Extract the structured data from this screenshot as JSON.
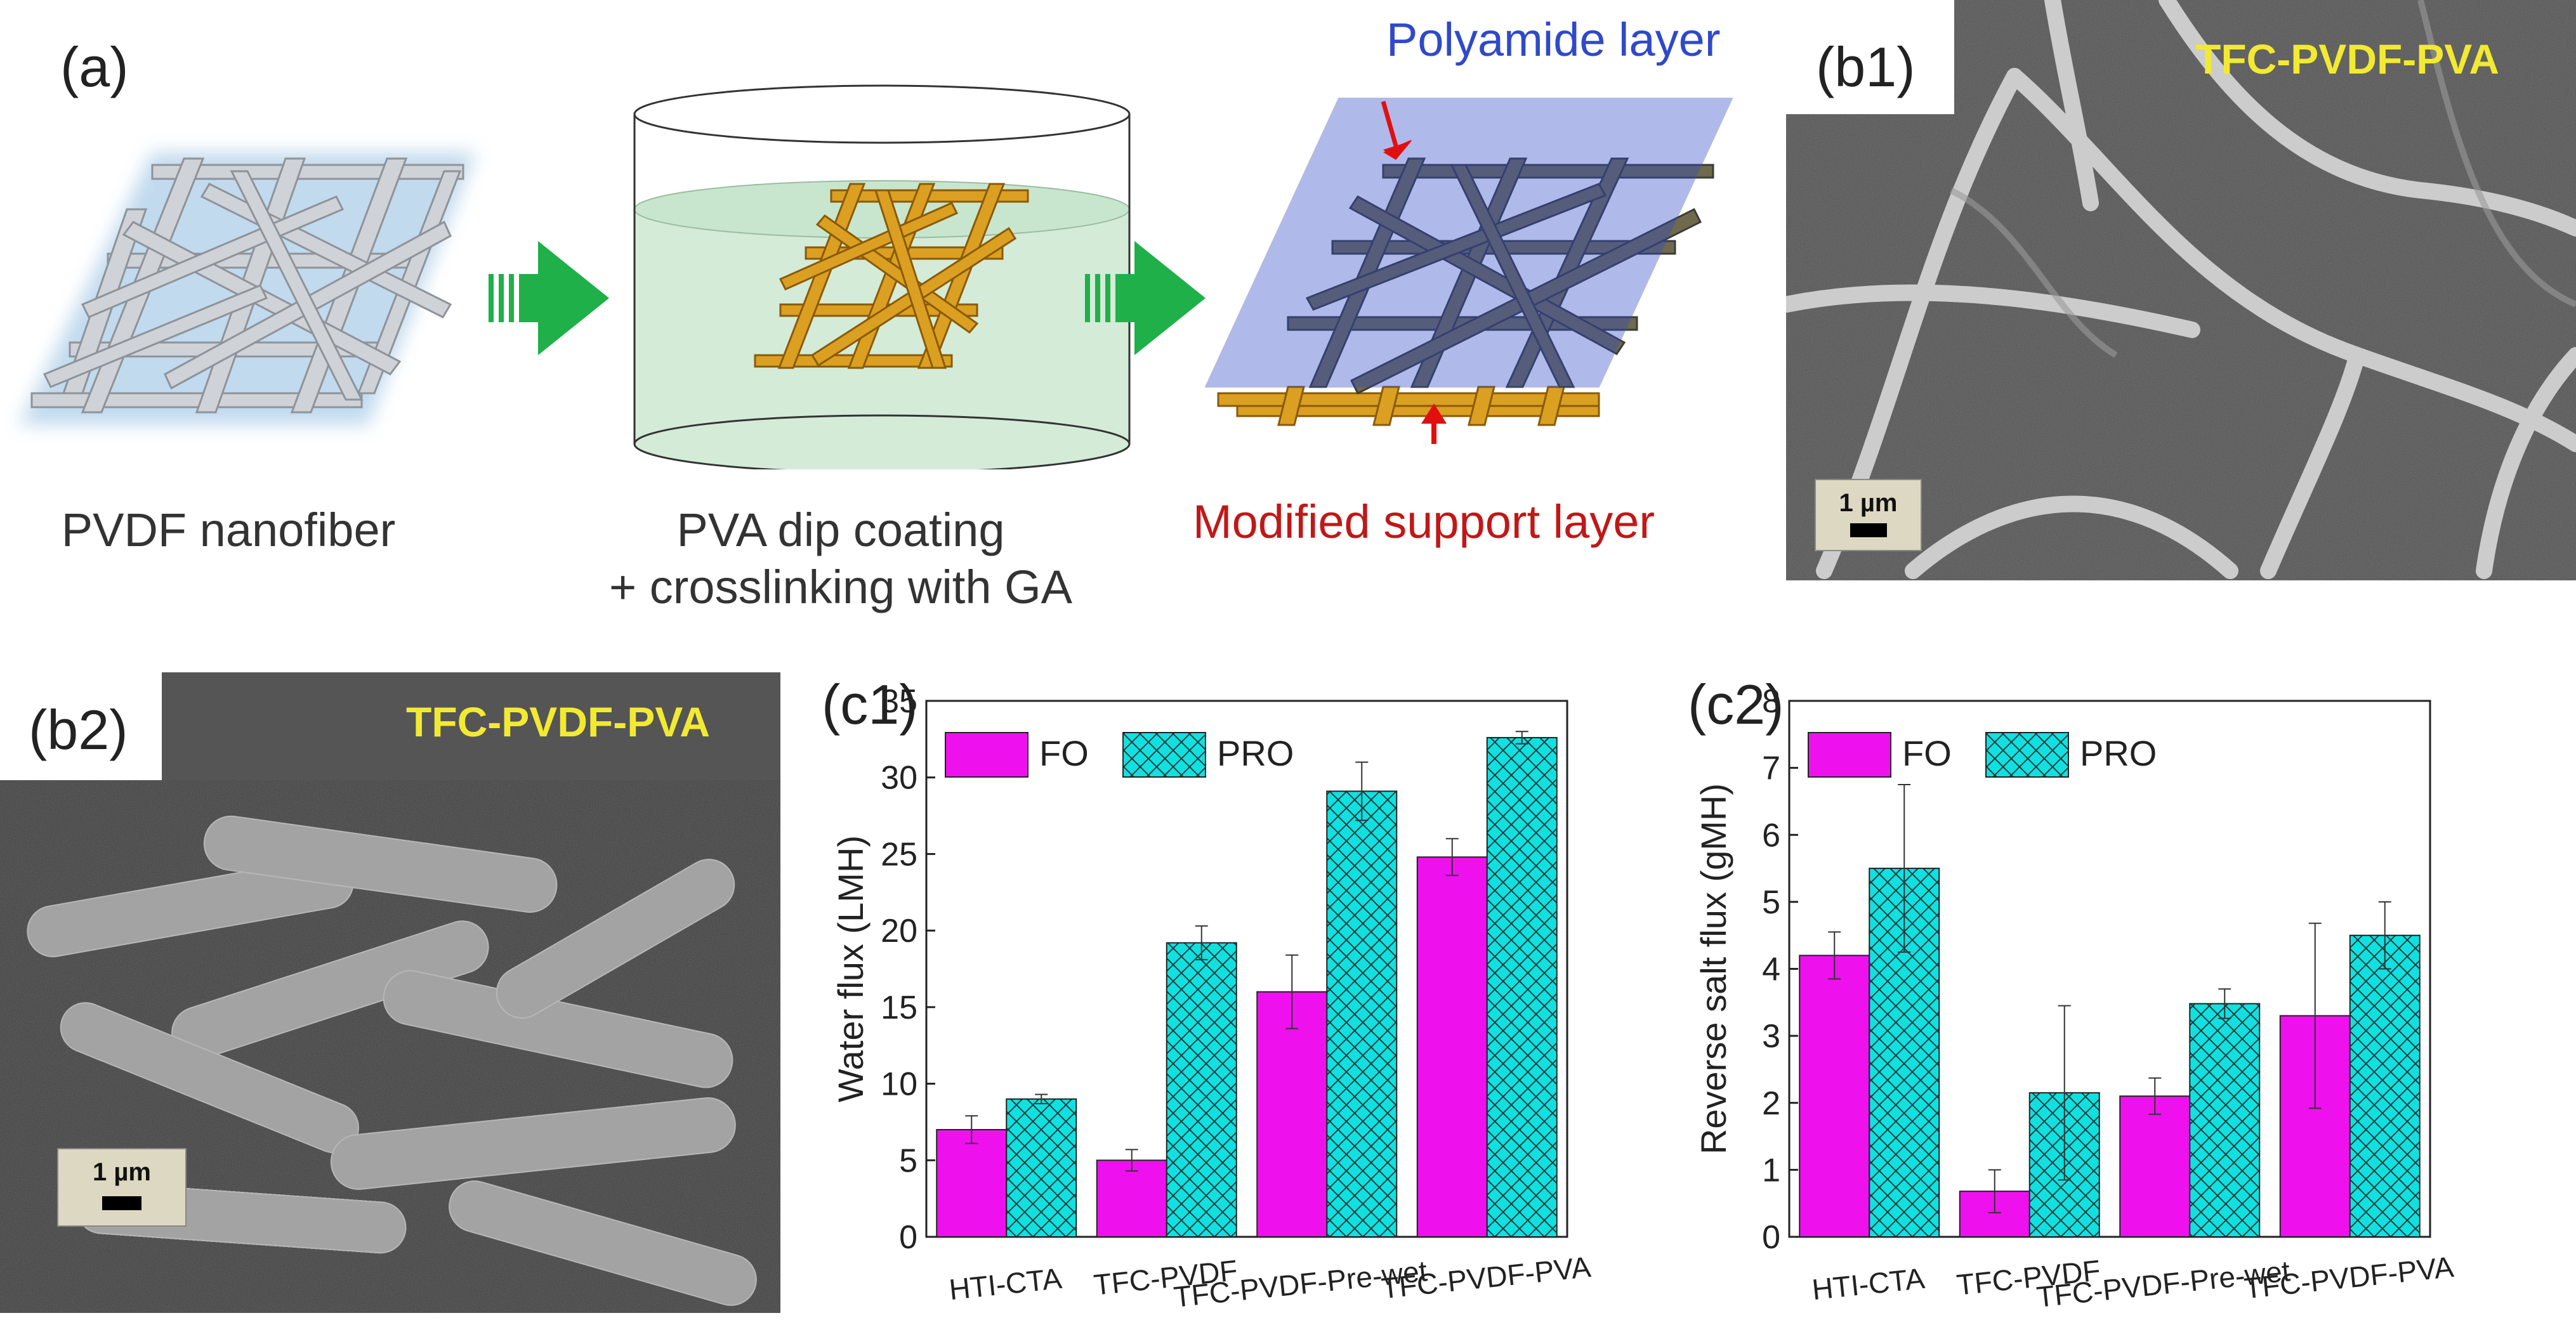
{
  "panel_a": {
    "label": "(a)",
    "step1_caption": "PVDF nanofiber",
    "step2_caption_line1": "PVA dip coating",
    "step2_caption_line2": "+ crosslinking with GA",
    "polyamide_label": "Polyamide layer",
    "support_label": "Modified support layer",
    "colors": {
      "pvdf_fiber": "#c9cdd3",
      "pva_fiber": "#d99a1a",
      "arrow": "#1fb04a",
      "polyamide": "#2f49c9",
      "support_text": "#c01818",
      "pointer": "#e01010"
    }
  },
  "panel_b1": {
    "label": "(b1)",
    "title": "TFC-PVDF-PVA",
    "scale": "1 µm"
  },
  "panel_b2": {
    "label": "(b2)",
    "title": "TFC-PVDF-PVA",
    "scale": "1 µm"
  },
  "chart_data": [
    {
      "panel": "(c1)",
      "type": "bar",
      "ylabel": "Water flux (LMH)",
      "xlabel": "",
      "ylim": [
        0,
        35
      ],
      "yticks": [
        "0",
        "5",
        "10",
        "15",
        "20",
        "25",
        "30",
        "35"
      ],
      "categories": [
        "HTI-CTA",
        "TFC-PVDF",
        "TFC-PVDF-Pre-wet",
        "TFC-PVDF-PVA"
      ],
      "series": [
        {
          "name": "FO",
          "values": [
            7.0,
            5.0,
            16.0,
            24.8
          ],
          "errors": [
            0.9,
            0.7,
            2.4,
            1.2
          ],
          "color": "#ee11ee"
        },
        {
          "name": "PRO",
          "values": [
            9.0,
            19.2,
            29.1,
            32.6
          ],
          "errors": [
            0.3,
            1.1,
            1.9,
            0.4
          ],
          "color": "#11e0e0"
        }
      ]
    },
    {
      "panel": "(c2)",
      "type": "bar",
      "ylabel": "Reverse salt flux (gMH)",
      "xlabel": "",
      "ylim": [
        0,
        8
      ],
      "yticks": [
        "0",
        "1",
        "2",
        "3",
        "4",
        "5",
        "6",
        "7",
        "8"
      ],
      "categories": [
        "HTI-CTA",
        "TFC-PVDF",
        "TFC-PVDF-Pre-wet",
        "TFC-PVDF-PVA"
      ],
      "series": [
        {
          "name": "FO",
          "values": [
            4.2,
            0.68,
            2.1,
            3.3
          ],
          "errors": [
            0.35,
            0.32,
            0.27,
            1.38
          ],
          "color": "#ee11ee"
        },
        {
          "name": "PRO",
          "values": [
            5.5,
            2.15,
            3.48,
            4.5
          ],
          "errors": [
            1.25,
            1.3,
            0.22,
            0.5
          ],
          "color": "#11e0e0"
        }
      ]
    }
  ]
}
